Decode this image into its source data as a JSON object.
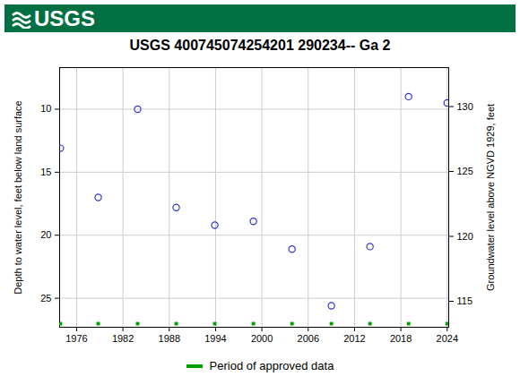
{
  "chart_data": {
    "type": "scatter",
    "logo": "USGS",
    "title": "USGS 400745074254201 290234-- Ga 2",
    "y_label": "Depth to water level, feet below land surface",
    "y2_label": "Groundwater level above NGVD 1929, feet",
    "xlim": [
      1973.8,
      2024.2
    ],
    "xticks": [
      1976,
      1982,
      1988,
      1994,
      2000,
      2006,
      2012,
      2018,
      2024
    ],
    "ylim": [
      6.7,
      27.3
    ],
    "yticks": [
      10,
      15,
      20,
      25
    ],
    "y2lim": [
      113,
      133
    ],
    "y2ticks": [
      115,
      120,
      125,
      130
    ],
    "grid": true,
    "legend": "bottom",
    "series": [
      {
        "color": "#3333cc",
        "marker": "circle",
        "x": [
          1973.9,
          1978.8,
          1983.9,
          1988.9,
          1993.9,
          1998.9,
          2003.9,
          2009.0,
          2014.0,
          2019.0,
          2024.0
        ],
        "values": [
          13.1,
          17.0,
          10.0,
          17.8,
          19.2,
          18.9,
          21.1,
          25.6,
          20.9,
          9.0,
          9.5
        ]
      },
      {
        "name": "Period of approved data",
        "type": "rug",
        "color": "#00a000",
        "marker": "square",
        "x": [
          1973.9,
          1978.8,
          1983.9,
          1988.9,
          1993.9,
          1998.9,
          2003.9,
          2009.0,
          2014.0,
          2019.0,
          2024.0
        ]
      }
    ]
  }
}
